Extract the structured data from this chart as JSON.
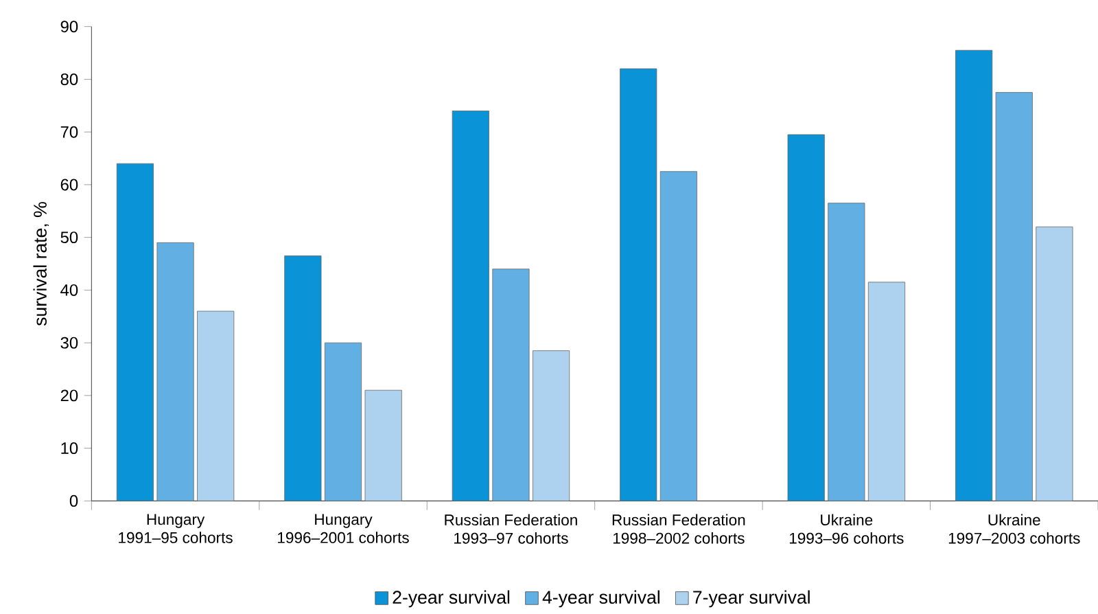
{
  "chart_data": {
    "type": "bar",
    "ylabel": "survival rate, %",
    "categories": [
      "Hungary\n1991–95 cohorts",
      "Hungary\n1996–2001 cohorts",
      "Russian Federation\n1993–97 cohorts",
      "Russian Federation\n1998–2002 cohorts",
      "Ukraine\n1993–96 cohorts",
      "Ukraine\n1997–2003 cohorts"
    ],
    "series": [
      {
        "name": "2-year survival",
        "color": "#0a93d6",
        "values": [
          64,
          46.5,
          74,
          82,
          69.5,
          85.5
        ]
      },
      {
        "name": "4-year survival",
        "color": "#62b0e3",
        "values": [
          49,
          30,
          44,
          62.5,
          56.5,
          77.5
        ]
      },
      {
        "name": "7-year survival",
        "color": "#acd2f0",
        "values": [
          36,
          21,
          28.5,
          null,
          41.5,
          52
        ]
      }
    ],
    "ylim": [
      0,
      90
    ],
    "yticks": [
      0,
      10,
      20,
      30,
      40,
      50,
      60,
      70,
      80,
      90
    ],
    "grid": false,
    "legend": "bottom"
  }
}
